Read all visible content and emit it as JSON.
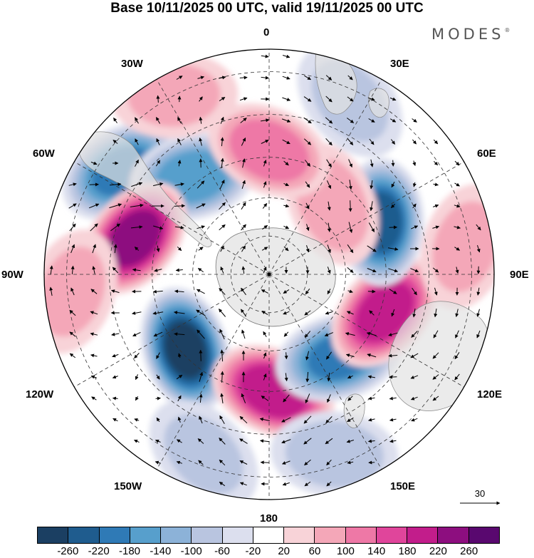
{
  "header": {
    "title": "Base 10/11/2025 00 UTC, valid 19/11/2025 00 UTC",
    "logo": "MODES",
    "logo_mark": "®"
  },
  "map": {
    "projection": "south-polar-stereographic",
    "meridian_labels": {
      "lon_0": "0",
      "lon_30e": "30E",
      "lon_60e": "60E",
      "lon_90e": "90E",
      "lon_120e": "120E",
      "lon_150e": "150E",
      "lon_180": "180",
      "lon_150w": "150W",
      "lon_120w": "120W",
      "lon_90w": "90W",
      "lon_60w": "60W",
      "lon_30w": "30W"
    },
    "anomaly_centres": [
      {
        "sign": "negative",
        "bearing_deg": -55,
        "radial_fraction": 0.8,
        "peak": -180
      },
      {
        "sign": "negative",
        "bearing_deg": -38,
        "radial_fraction": 0.55,
        "peak": -160
      },
      {
        "sign": "positive",
        "bearing_deg": -75,
        "radial_fraction": 0.62,
        "peak": 230
      },
      {
        "sign": "negative",
        "bearing_deg": -132,
        "radial_fraction": 0.5,
        "peak": -260
      },
      {
        "sign": "positive",
        "bearing_deg": 178,
        "radial_fraction": 0.52,
        "peak": 210
      },
      {
        "sign": "negative",
        "bearing_deg": 140,
        "radial_fraction": 0.48,
        "peak": -180
      },
      {
        "sign": "positive",
        "bearing_deg": 108,
        "radial_fraction": 0.54,
        "peak": 200
      },
      {
        "sign": "negative",
        "bearing_deg": 65,
        "radial_fraction": 0.55,
        "peak": -220
      },
      {
        "sign": "positive",
        "bearing_deg": 42,
        "radial_fraction": 0.42,
        "peak": 80
      },
      {
        "sign": "positive",
        "bearing_deg": 0,
        "radial_fraction": 0.55,
        "peak": 120
      },
      {
        "sign": "positive",
        "bearing_deg": -28,
        "radial_fraction": 0.9,
        "peak": 60
      },
      {
        "sign": "negative",
        "bearing_deg": 25,
        "radial_fraction": 0.85,
        "peak": -60
      },
      {
        "sign": "positive",
        "bearing_deg": 82,
        "radial_fraction": 0.88,
        "peak": 60
      },
      {
        "sign": "positive",
        "bearing_deg": -95,
        "radial_fraction": 0.88,
        "peak": 60
      },
      {
        "sign": "negative",
        "bearing_deg": -160,
        "radial_fraction": 0.85,
        "peak": -60
      },
      {
        "sign": "negative",
        "bearing_deg": 160,
        "radial_fraction": 0.85,
        "peak": -80
      }
    ]
  },
  "wind_reference": {
    "value": "30"
  },
  "colorbar": {
    "levels": [
      "-260",
      "-220",
      "-180",
      "-140",
      "-100",
      "-60",
      "-20",
      "20",
      "60",
      "100",
      "140",
      "180",
      "220",
      "260"
    ],
    "colors": [
      "#1b3f62",
      "#1f5c8e",
      "#2f7ab6",
      "#579fcc",
      "#8cb2d8",
      "#b9c5e0",
      "#dcdfee",
      "#ffffff",
      "#f8d3d8",
      "#f4a7b8",
      "#ee78a6",
      "#e0459b",
      "#c21d8b",
      "#8d0e7f",
      "#59086f"
    ]
  }
}
